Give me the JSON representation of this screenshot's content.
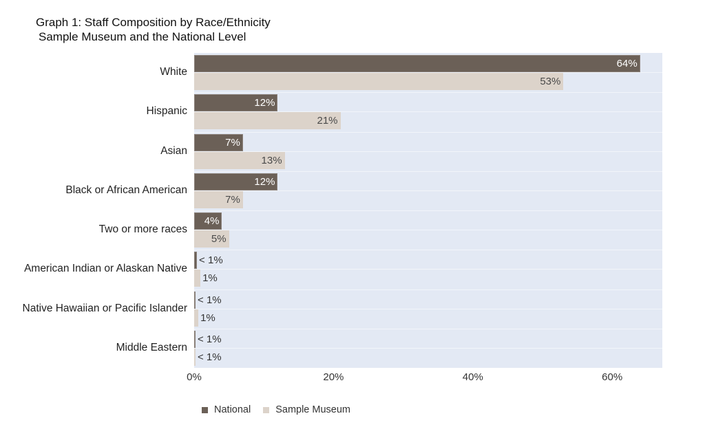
{
  "title": "Graph 1: Staff Composition by Race/Ethnicity",
  "subtitle": "Sample Museum and the National Level",
  "colors": {
    "national": "#6b6057",
    "museum": "#dcd3ca",
    "plot_bg": "#e3e9f4"
  },
  "legend": [
    {
      "label": "National",
      "color": "#6b6057"
    },
    {
      "label": "Sample Museum",
      "color": "#dcd3ca"
    }
  ],
  "x_ticks": [
    "0%",
    "20%",
    "40%",
    "60%"
  ],
  "categories": [
    {
      "name": "White",
      "national": 64,
      "national_label": "64%",
      "museum": 53,
      "museum_label": "53%"
    },
    {
      "name": "Hispanic",
      "national": 12,
      "national_label": "12%",
      "museum": 21,
      "museum_label": "21%"
    },
    {
      "name": "Asian",
      "national": 7,
      "national_label": "7%",
      "museum": 13,
      "museum_label": "13%"
    },
    {
      "name": "Black or African American",
      "national": 12,
      "national_label": "12%",
      "museum": 7,
      "museum_label": "7%"
    },
    {
      "name": "Two or more races",
      "national": 4,
      "national_label": "4%",
      "museum": 5,
      "museum_label": "5%"
    },
    {
      "name": "American Indian or Alaskan Native",
      "national": 0.4,
      "national_label": "< 1%",
      "museum": 0.9,
      "museum_label": "1%"
    },
    {
      "name": "Native Hawaiian or Pacific Islander",
      "national": 0.2,
      "national_label": "< 1%",
      "museum": 0.6,
      "museum_label": "1%"
    },
    {
      "name": "Middle Eastern",
      "national": 0.1,
      "national_label": "< 1%",
      "museum": 0.1,
      "museum_label": "< 1%"
    }
  ],
  "chart_data": {
    "type": "bar",
    "orientation": "horizontal",
    "title": "Graph 1: Staff Composition by Race/Ethnicity",
    "subtitle": "Sample Museum and the National Level",
    "categories": [
      "White",
      "Hispanic",
      "Asian",
      "Black or African American",
      "Two or more races",
      "American Indian or Alaskan Native",
      "Native Hawaiian or Pacific Islander",
      "Middle Eastern"
    ],
    "series": [
      {
        "name": "National",
        "values": [
          64,
          12,
          7,
          12,
          4,
          0.4,
          0.2,
          0.1
        ],
        "labels": [
          "64%",
          "12%",
          "7%",
          "12%",
          "4%",
          "< 1%",
          "< 1%",
          "< 1%"
        ]
      },
      {
        "name": "Sample Museum",
        "values": [
          53,
          21,
          13,
          7,
          5,
          1,
          1,
          0.1
        ],
        "labels": [
          "53%",
          "21%",
          "13%",
          "7%",
          "5%",
          "1%",
          "1%",
          "< 1%"
        ]
      }
    ],
    "xlabel": "",
    "ylabel": "",
    "xlim": [
      0,
      67
    ],
    "x_ticks": [
      "0%",
      "20%",
      "40%",
      "60%"
    ],
    "grid": false,
    "legend_position": "bottom"
  }
}
